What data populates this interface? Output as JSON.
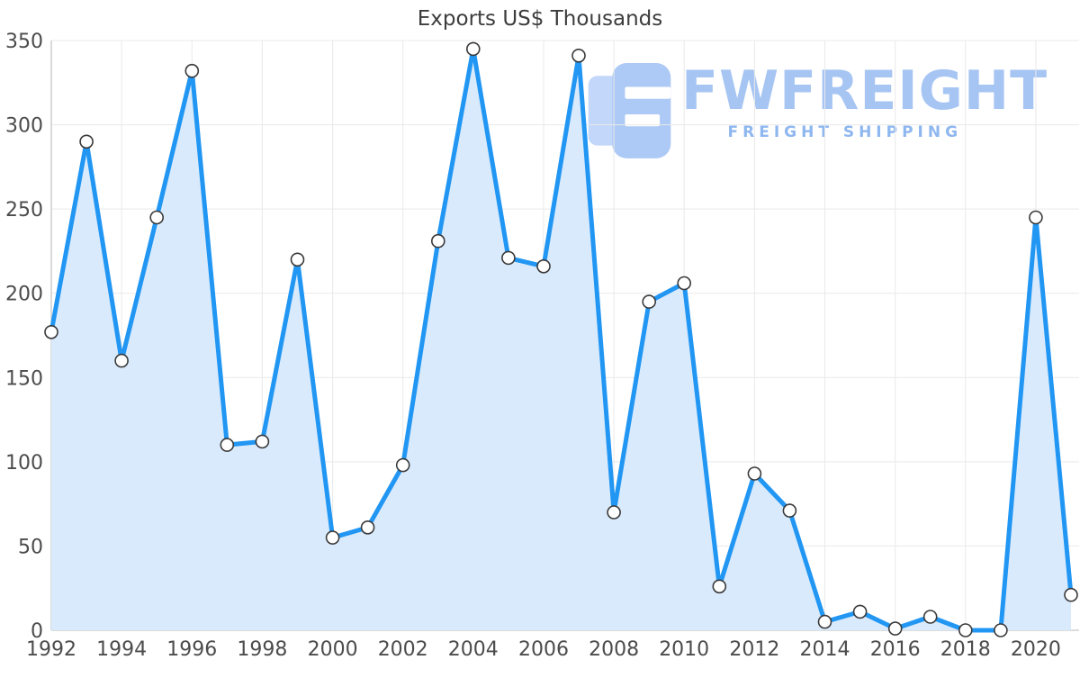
{
  "logo": {
    "name": "FWFREIGHT",
    "tagline": "FREIGHT SHIPPING"
  },
  "chart_data": {
    "type": "area",
    "title": "Exports US$ Thousands",
    "xlabel": "",
    "ylabel": "",
    "x": [
      1992,
      1993,
      1994,
      1995,
      1996,
      1997,
      1998,
      1999,
      2000,
      2001,
      2002,
      2003,
      2004,
      2005,
      2006,
      2007,
      2008,
      2009,
      2010,
      2011,
      2012,
      2013,
      2014,
      2015,
      2016,
      2017,
      2018,
      2019,
      2020,
      2021
    ],
    "values": [
      177,
      290,
      160,
      245,
      332,
      110,
      112,
      220,
      55,
      61,
      98,
      231,
      345,
      221,
      216,
      341,
      70,
      195,
      206,
      26,
      93,
      71,
      5,
      11,
      1,
      8,
      0,
      0,
      245,
      21
    ],
    "xticks": [
      1992,
      1994,
      1996,
      1998,
      2000,
      2002,
      2004,
      2006,
      2008,
      2010,
      2012,
      2014,
      2016,
      2018,
      2020
    ],
    "yticks": [
      0,
      50,
      100,
      150,
      200,
      250,
      300,
      350
    ],
    "xlim": [
      1992,
      2021
    ],
    "ylim": [
      0,
      350
    ],
    "grid": true,
    "legend_position": "none",
    "line_color": "#2196f3",
    "fill_color": "#d9eafc",
    "marker_fill": "#ffffff",
    "marker_stroke": "#3a3a3a",
    "axis_color": "#c6c6c6",
    "grid_color": "#e9e9e9"
  }
}
